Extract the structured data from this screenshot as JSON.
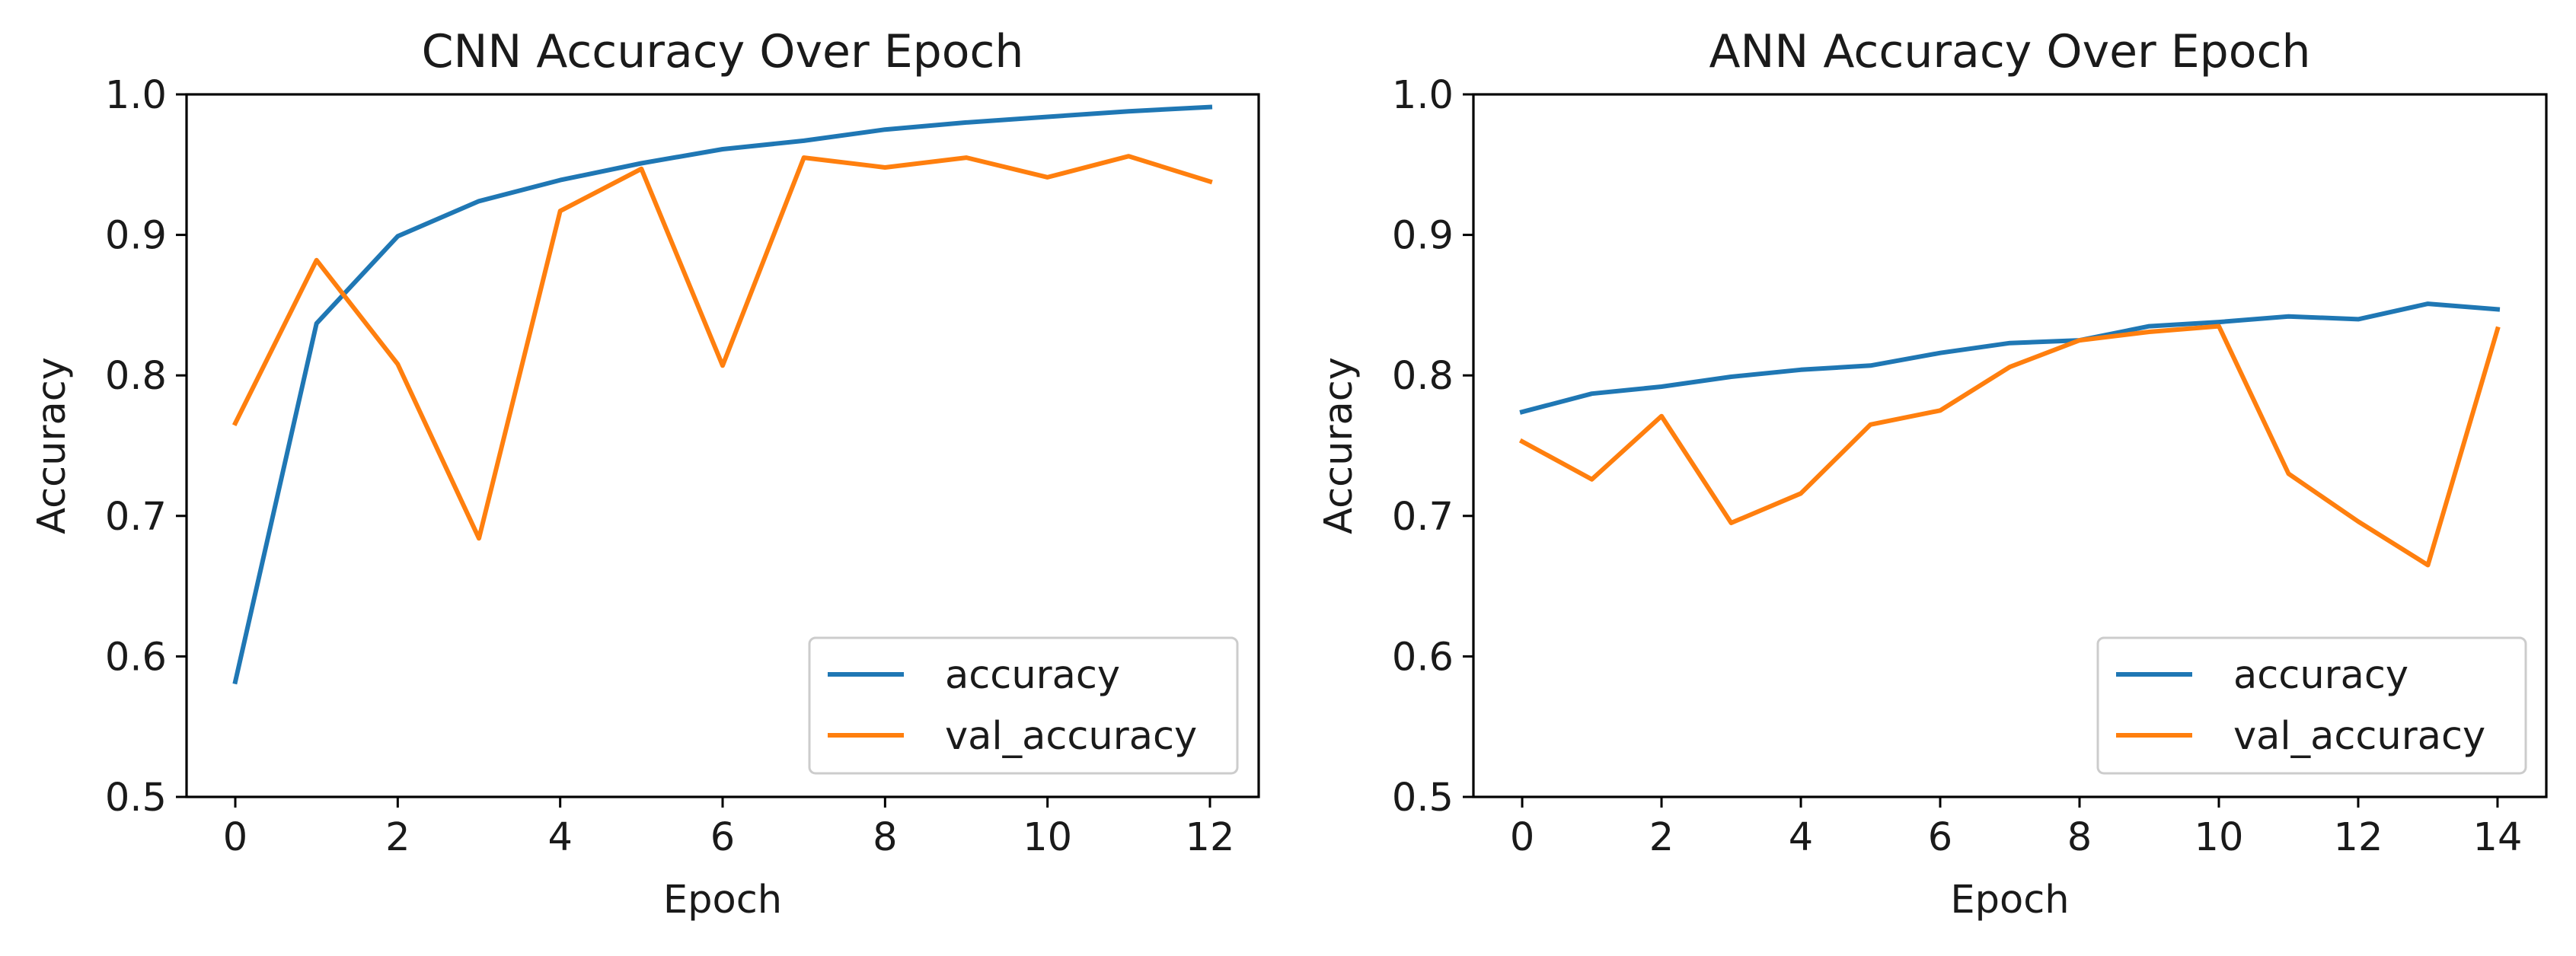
{
  "chart_data": [
    {
      "type": "line",
      "title": "CNN Accuracy Over Epoch",
      "xlabel": "Epoch",
      "ylabel": "Accuracy",
      "xlim": [
        -0.6,
        12.6
      ],
      "ylim": [
        0.5,
        1.0
      ],
      "xticks": [
        0,
        2,
        4,
        6,
        8,
        10,
        12
      ],
      "yticks": [
        0.5,
        0.6,
        0.7,
        0.8,
        0.9,
        1.0
      ],
      "x": [
        0,
        1,
        2,
        3,
        4,
        5,
        6,
        7,
        8,
        9,
        10,
        11,
        12
      ],
      "legend": "lower right",
      "grid": false,
      "series": [
        {
          "name": "accuracy",
          "color": "#1f77b4",
          "values": [
            0.582,
            0.837,
            0.899,
            0.924,
            0.939,
            0.951,
            0.961,
            0.967,
            0.975,
            0.98,
            0.984,
            0.988,
            0.991
          ]
        },
        {
          "name": "val_accuracy",
          "color": "#ff7f0e",
          "values": [
            0.766,
            0.882,
            0.808,
            0.684,
            0.917,
            0.947,
            0.807,
            0.955,
            0.948,
            0.955,
            0.941,
            0.956,
            0.938
          ]
        }
      ]
    },
    {
      "type": "line",
      "title": "ANN Accuracy Over Epoch",
      "xlabel": "Epoch",
      "ylabel": "Accuracy",
      "xlim": [
        -0.7,
        14.7
      ],
      "ylim": [
        0.5,
        1.0
      ],
      "xticks": [
        0,
        2,
        4,
        6,
        8,
        10,
        12,
        14
      ],
      "yticks": [
        0.5,
        0.6,
        0.7,
        0.8,
        0.9,
        1.0
      ],
      "x": [
        0,
        1,
        2,
        3,
        4,
        5,
        6,
        7,
        8,
        9,
        10,
        11,
        12,
        13,
        14
      ],
      "legend": "lower right",
      "grid": false,
      "series": [
        {
          "name": "accuracy",
          "color": "#1f77b4",
          "values": [
            0.774,
            0.787,
            0.792,
            0.799,
            0.804,
            0.807,
            0.816,
            0.823,
            0.825,
            0.835,
            0.838,
            0.842,
            0.84,
            0.851,
            0.847
          ]
        },
        {
          "name": "val_accuracy",
          "color": "#ff7f0e",
          "values": [
            0.753,
            0.726,
            0.771,
            0.695,
            0.716,
            0.765,
            0.775,
            0.806,
            0.825,
            0.831,
            0.835,
            0.73,
            0.696,
            0.665,
            0.833
          ]
        }
      ]
    }
  ]
}
